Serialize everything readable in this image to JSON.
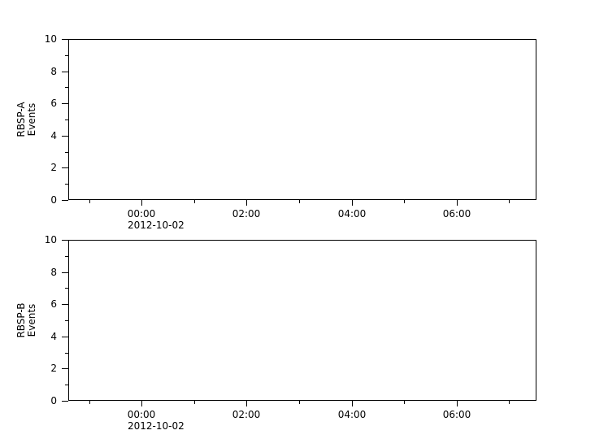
{
  "chart_data": [
    {
      "type": "line",
      "title": "",
      "xlabel": "",
      "ylabel_lines": [
        "RBSP-A",
        "Events"
      ],
      "ylim": [
        0,
        10
      ],
      "y_major_ticks": [
        0,
        2,
        4,
        6,
        8,
        10
      ],
      "y_minor_ticks": [
        1,
        3,
        5,
        7,
        9
      ],
      "xlim_hours": [
        -1.397,
        7.523
      ],
      "x_major_ticks": [
        {
          "hour": 0,
          "label": "00:00"
        },
        {
          "hour": 2,
          "label": "02:00"
        },
        {
          "hour": 4,
          "label": "04:00"
        },
        {
          "hour": 6,
          "label": "06:00"
        }
      ],
      "x_minor_tick_hours": [
        -1,
        1,
        3,
        5,
        7
      ],
      "x_date_label": "2012-10-02",
      "grid": false,
      "legend": null,
      "series": []
    },
    {
      "type": "line",
      "title": "",
      "xlabel": "",
      "ylabel_lines": [
        "RBSP-B",
        "Events"
      ],
      "ylim": [
        0,
        10
      ],
      "y_major_ticks": [
        0,
        2,
        4,
        6,
        8,
        10
      ],
      "y_minor_ticks": [
        1,
        3,
        5,
        7,
        9
      ],
      "xlim_hours": [
        -1.397,
        7.523
      ],
      "x_major_ticks": [
        {
          "hour": 0,
          "label": "00:00"
        },
        {
          "hour": 2,
          "label": "02:00"
        },
        {
          "hour": 4,
          "label": "04:00"
        },
        {
          "hour": 6,
          "label": "06:00"
        }
      ],
      "x_minor_tick_hours": [
        -1,
        1,
        3,
        5,
        7
      ],
      "x_date_label": "2012-10-02",
      "grid": false,
      "legend": null,
      "series": []
    }
  ],
  "colors": {
    "foreground": "#000000",
    "background": "#ffffff"
  }
}
